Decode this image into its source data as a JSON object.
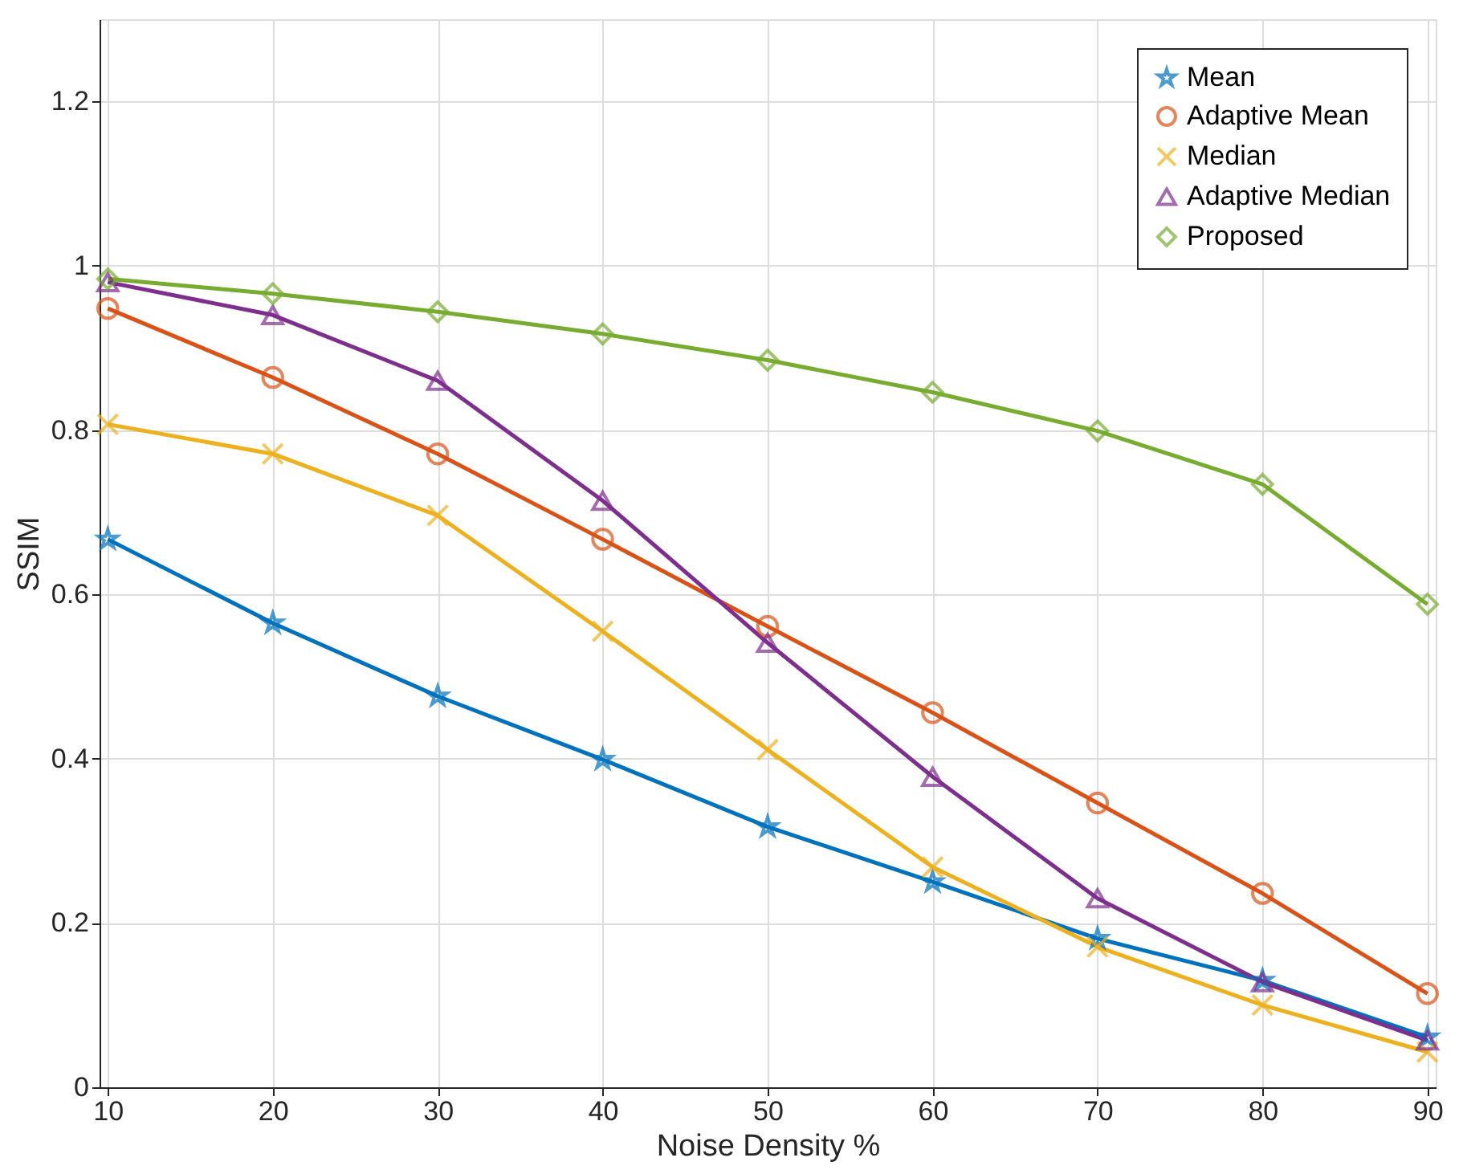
{
  "chart_data": {
    "type": "line",
    "xlabel": "Noise Density %",
    "ylabel": "SSIM",
    "x": [
      10,
      20,
      30,
      40,
      50,
      60,
      70,
      80,
      90
    ],
    "series": [
      {
        "name": "Mean",
        "color": "#0072bd",
        "marker": "star",
        "values": [
          0.667,
          0.565,
          0.476,
          0.399,
          0.317,
          0.25,
          0.181,
          0.13,
          0.061
        ]
      },
      {
        "name": "Adaptive Mean",
        "color": "#d95319",
        "marker": "circle",
        "values": [
          0.948,
          0.864,
          0.771,
          0.667,
          0.561,
          0.456,
          0.346,
          0.236,
          0.114
        ]
      },
      {
        "name": "Median",
        "color": "#edb120",
        "marker": "cross",
        "values": [
          0.807,
          0.771,
          0.696,
          0.555,
          0.411,
          0.268,
          0.171,
          0.1,
          0.043
        ]
      },
      {
        "name": "Adaptive Median",
        "color": "#7e2f8e",
        "marker": "triangle",
        "values": [
          0.98,
          0.94,
          0.86,
          0.714,
          0.541,
          0.378,
          0.23,
          0.128,
          0.057
        ]
      },
      {
        "name": "Proposed",
        "color": "#77ac30",
        "marker": "diamond",
        "values": [
          0.984,
          0.966,
          0.944,
          0.917,
          0.885,
          0.846,
          0.799,
          0.734,
          0.588
        ]
      }
    ],
    "xlim": [
      9.5,
      90.5
    ],
    "ylim": [
      0,
      1.3
    ],
    "xticks": [
      10,
      20,
      30,
      40,
      50,
      60,
      70,
      80,
      90
    ],
    "yticks": [
      0,
      0.2,
      0.4,
      0.6,
      0.8,
      1,
      1.2
    ],
    "grid": true,
    "legend": "top right",
    "line_style": "solid"
  }
}
